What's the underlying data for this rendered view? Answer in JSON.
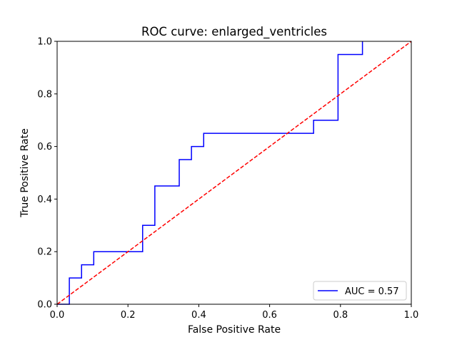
{
  "chart_data": {
    "type": "line",
    "title": "ROC curve: enlarged_ventricles",
    "xlabel": "False Positive Rate",
    "ylabel": "True Positive Rate",
    "xlim": [
      0.0,
      1.0
    ],
    "ylim": [
      0.0,
      1.0
    ],
    "xticks": [
      "0.0",
      "0.2",
      "0.4",
      "0.6",
      "0.8",
      "1.0"
    ],
    "yticks": [
      "0.0",
      "0.2",
      "0.4",
      "0.6",
      "0.8",
      "1.0"
    ],
    "grid": false,
    "legend_position": "lower-right",
    "series": [
      {
        "name": "AUC = 0.57",
        "color": "#0000ff",
        "style": "solid",
        "x": [
          0.0,
          0.0345,
          0.0345,
          0.069,
          0.069,
          0.1034,
          0.1034,
          0.2414,
          0.2414,
          0.2759,
          0.2759,
          0.3448,
          0.3448,
          0.3793,
          0.3793,
          0.4138,
          0.4138,
          0.7241,
          0.7241,
          0.7931,
          0.7931,
          0.8621,
          0.8621
        ],
        "y": [
          0.0,
          0.0,
          0.1,
          0.1,
          0.15,
          0.15,
          0.2,
          0.2,
          0.3,
          0.3,
          0.45,
          0.45,
          0.55,
          0.55,
          0.6,
          0.6,
          0.65,
          0.65,
          0.7,
          0.7,
          0.95,
          0.95,
          1.0
        ]
      },
      {
        "color": "#ff0000",
        "style": "dashed",
        "x": [
          0.0,
          1.0
        ],
        "y": [
          0.0,
          1.0
        ]
      }
    ]
  }
}
